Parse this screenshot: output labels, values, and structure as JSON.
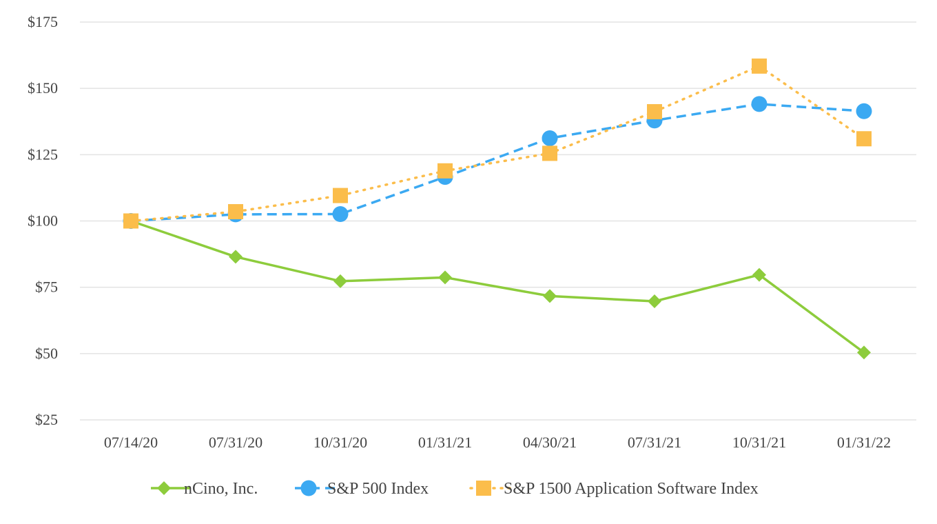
{
  "chart_data": {
    "type": "line",
    "title": "",
    "xlabel": "",
    "ylabel": "",
    "categories": [
      "07/14/20",
      "07/31/20",
      "10/31/20",
      "01/31/21",
      "04/30/21",
      "07/31/21",
      "10/31/21",
      "01/31/22"
    ],
    "ylim": [
      25,
      175
    ],
    "yticks": [
      25,
      50,
      75,
      100,
      125,
      150,
      175
    ],
    "ytick_labels": [
      "$25",
      "$50",
      "$75",
      "$100",
      "$125",
      "$150",
      "$175"
    ],
    "grid": true,
    "legend_position": "bottom",
    "series": [
      {
        "name": "nCino, Inc.",
        "marker": "diamond",
        "line_style": "solid",
        "color": "#8dcc3c",
        "values": [
          100,
          86.5,
          77.3,
          78.7,
          71.7,
          69.7,
          79.7,
          50.4
        ]
      },
      {
        "name": "S&P 500 Index",
        "marker": "circle",
        "line_style": "dashed",
        "color": "#3ba9f2",
        "values": [
          100,
          102.5,
          102.6,
          116.6,
          131.2,
          137.9,
          144.1,
          141.4
        ]
      },
      {
        "name": "S&P 1500 Application Software Index",
        "marker": "square",
        "line_style": "dotted",
        "color": "#fbbd4b",
        "values": [
          100,
          103.5,
          109.6,
          118.9,
          125.5,
          141.2,
          158.4,
          131.0
        ]
      }
    ]
  }
}
